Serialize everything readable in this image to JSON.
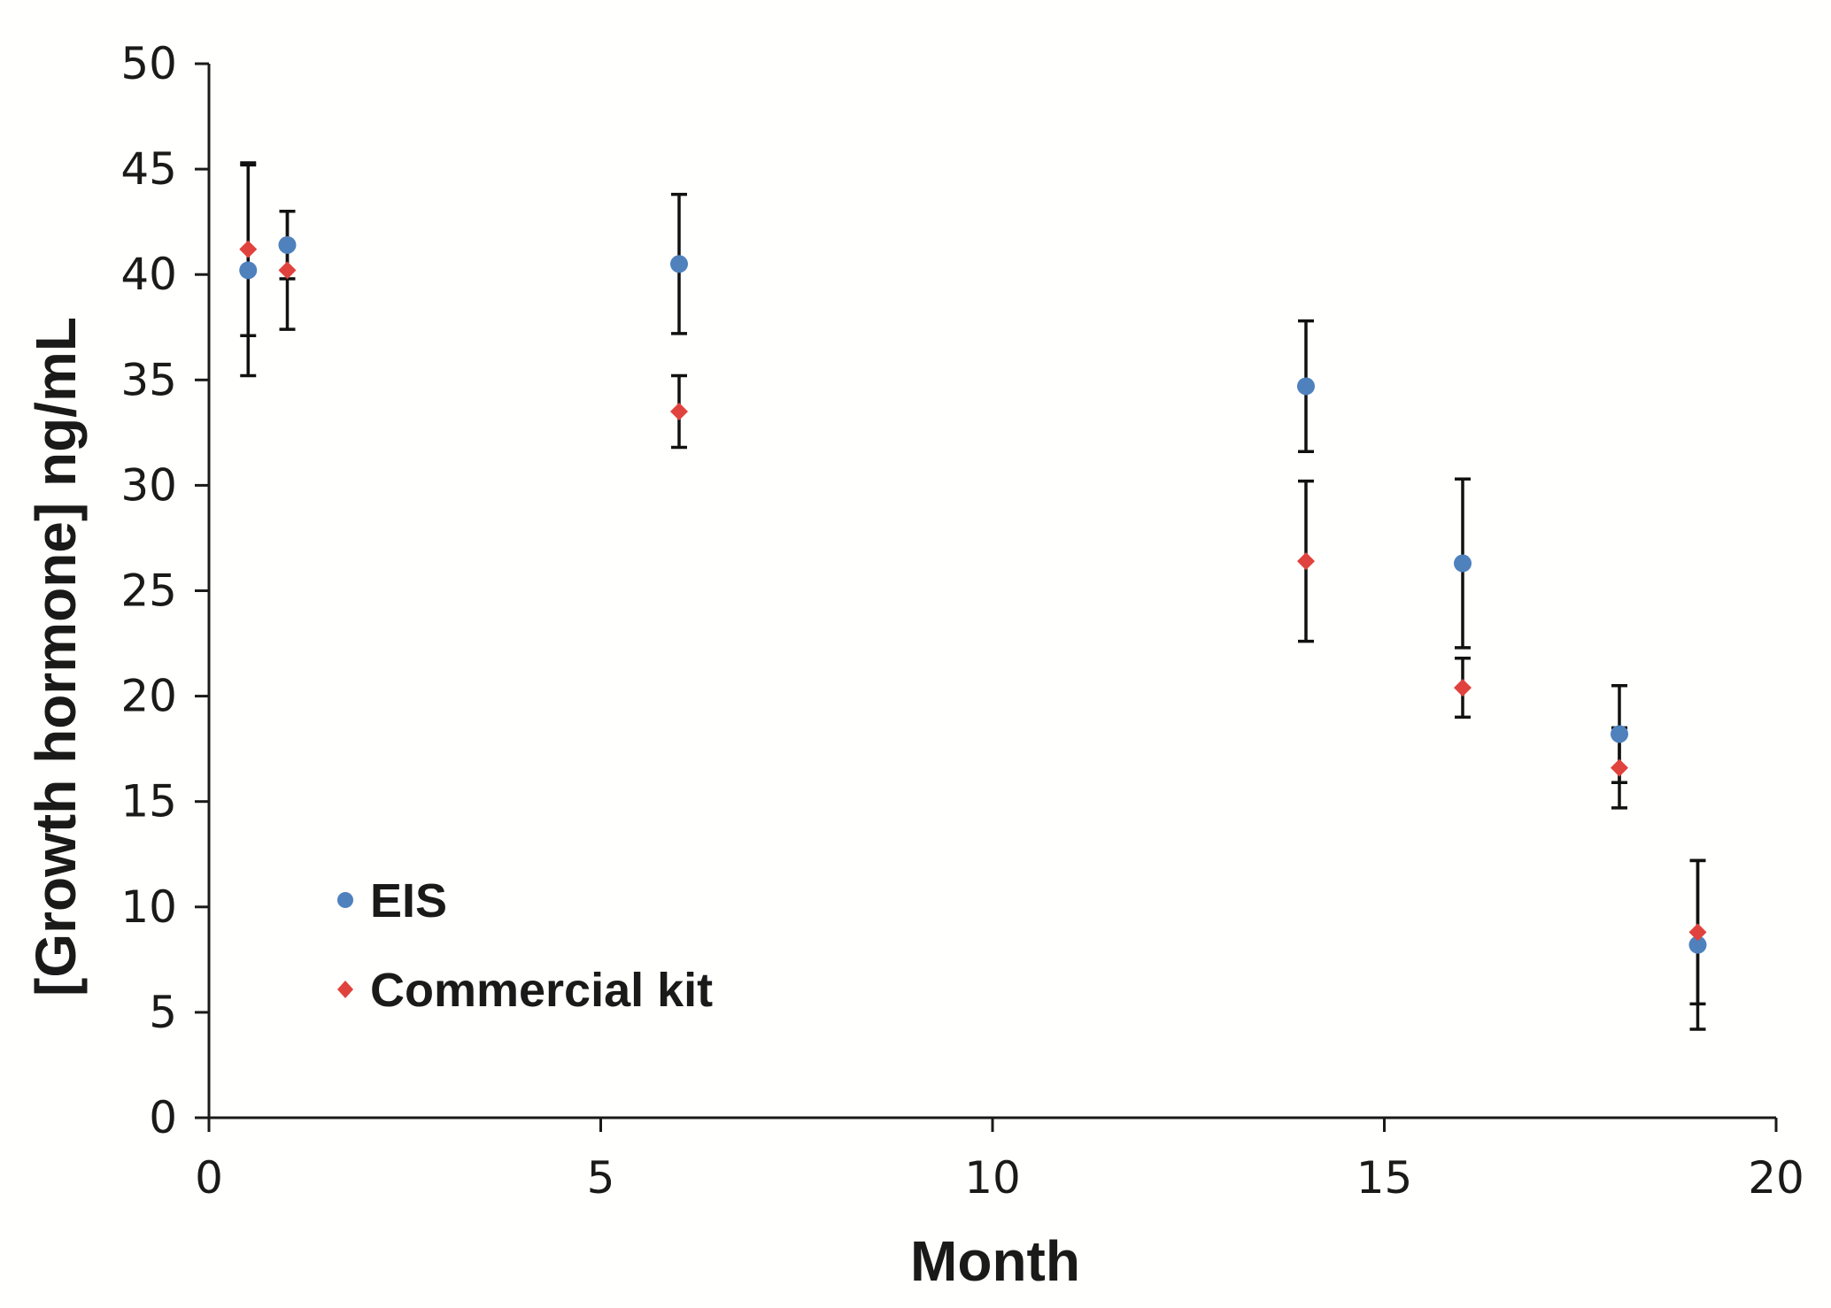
{
  "chart_data": {
    "type": "scatter",
    "title": "",
    "xlabel": "Month",
    "ylabel": "[Growth hormone] ng/mL",
    "xlim": [
      0,
      20
    ],
    "ylim": [
      0,
      50
    ],
    "xticks": [
      0,
      5,
      10,
      15,
      20
    ],
    "yticks": [
      0,
      5,
      10,
      15,
      20,
      25,
      30,
      35,
      40,
      45,
      50
    ],
    "xtick_labels": [
      "0",
      "5",
      "10",
      "15",
      "20"
    ],
    "ytick_labels": [
      "0",
      "5",
      "10",
      "15",
      "20",
      "25",
      "30",
      "35",
      "40",
      "45",
      "50"
    ],
    "grid": false,
    "legend_position": "lower-left",
    "series": [
      {
        "name": "EIS",
        "marker": "circle",
        "color": "#4f81bd",
        "x": [
          0.5,
          1,
          6,
          14,
          16,
          18,
          19
        ],
        "y": [
          40.2,
          41.4,
          40.5,
          34.7,
          26.3,
          18.2,
          8.2
        ],
        "err": [
          5.0,
          1.6,
          3.3,
          3.1,
          4.0,
          2.3,
          4.0
        ]
      },
      {
        "name": "Commercial kit",
        "marker": "diamond",
        "color": "#e0433d",
        "x": [
          0.5,
          1,
          6,
          14,
          16,
          18,
          19
        ],
        "y": [
          41.2,
          40.2,
          33.5,
          26.4,
          20.4,
          16.6,
          8.8
        ],
        "err": [
          4.1,
          2.8,
          1.7,
          3.8,
          1.4,
          1.9,
          3.4
        ]
      }
    ]
  }
}
